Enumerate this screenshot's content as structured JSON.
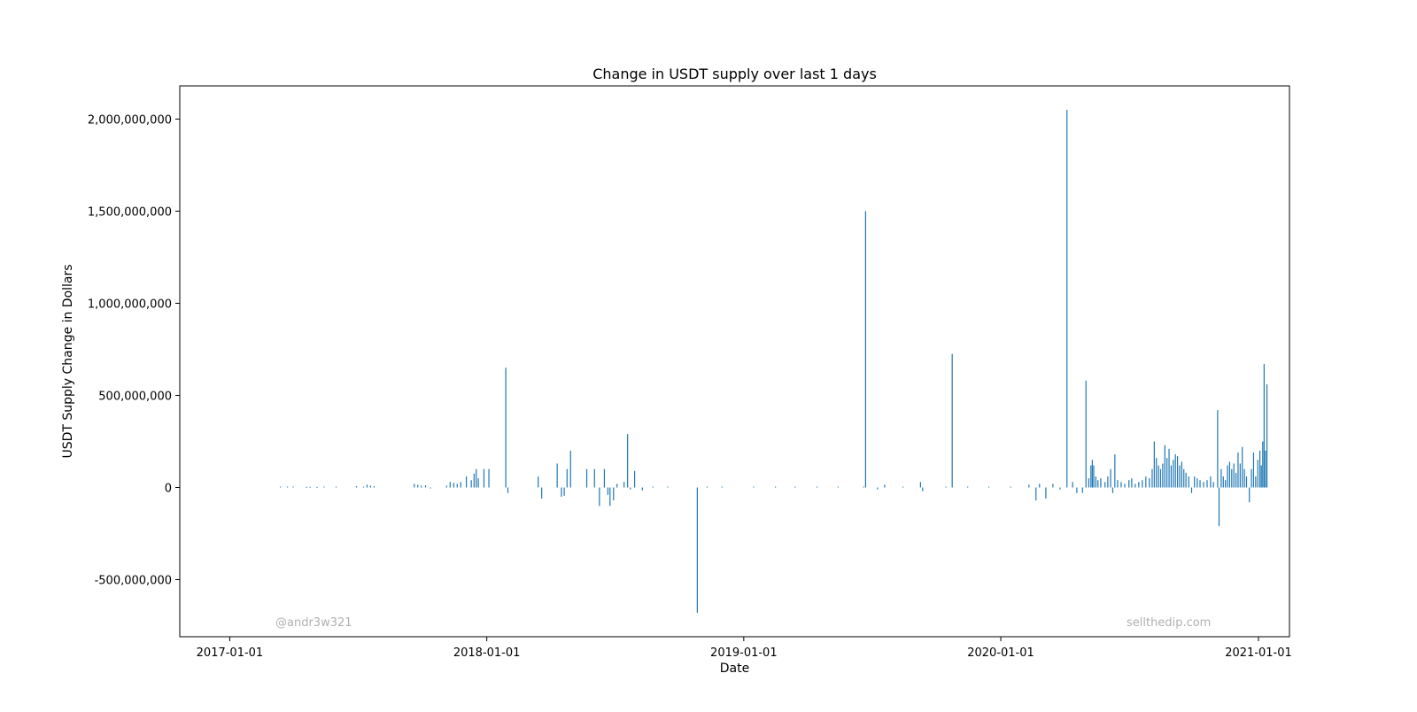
{
  "chart_data": {
    "type": "bar",
    "title": "Change in USDT supply over last 1 days",
    "xlabel": "Date",
    "ylabel": "USDT Supply Change in Dollars",
    "x_axis": "date",
    "xlim": [
      "2016-10-22",
      "2021-02-14"
    ],
    "ylim": [
      -810000000,
      2180000000
    ],
    "x_ticks": [
      "2017-01-01",
      "2018-01-01",
      "2019-01-01",
      "2020-01-01",
      "2021-01-01"
    ],
    "y_ticks": [
      -500000000,
      0,
      500000000,
      1000000000,
      1500000000,
      2000000000
    ],
    "y_tick_labels": [
      "-500,000,000",
      "0",
      "500,000,000",
      "1,000,000,000",
      "1,500,000,000",
      "2,000,000,000"
    ],
    "grid": false,
    "legend": "none",
    "bar_color": "#1f77b4",
    "watermarks": [
      "@andr3w321",
      "sellthedip.com"
    ],
    "series": [
      {
        "values": [
          {
            "x": "2017-03-14",
            "y": 5000000
          },
          {
            "x": "2017-03-24",
            "y": 5000000
          },
          {
            "x": "2017-04-01",
            "y": 5000000
          },
          {
            "x": "2017-04-20",
            "y": 3000000
          },
          {
            "x": "2017-04-25",
            "y": 4000000
          },
          {
            "x": "2017-05-05",
            "y": 3000000
          },
          {
            "x": "2017-05-15",
            "y": 5000000
          },
          {
            "x": "2017-06-01",
            "y": 5000000
          },
          {
            "x": "2017-06-30",
            "y": 7000000
          },
          {
            "x": "2017-07-10",
            "y": 5000000
          },
          {
            "x": "2017-07-15",
            "y": 15000000
          },
          {
            "x": "2017-07-20",
            "y": 10000000
          },
          {
            "x": "2017-07-25",
            "y": 7000000
          },
          {
            "x": "2017-09-20",
            "y": 20000000
          },
          {
            "x": "2017-09-25",
            "y": 15000000
          },
          {
            "x": "2017-09-30",
            "y": 10000000
          },
          {
            "x": "2017-10-06",
            "y": 12000000
          },
          {
            "x": "2017-10-13",
            "y": -5000000
          },
          {
            "x": "2017-11-05",
            "y": 10000000
          },
          {
            "x": "2017-11-10",
            "y": 30000000
          },
          {
            "x": "2017-11-15",
            "y": 25000000
          },
          {
            "x": "2017-11-20",
            "y": 20000000
          },
          {
            "x": "2017-11-25",
            "y": 30000000
          },
          {
            "x": "2017-12-03",
            "y": 60000000
          },
          {
            "x": "2017-12-10",
            "y": 40000000
          },
          {
            "x": "2017-12-14",
            "y": 75000000
          },
          {
            "x": "2017-12-17",
            "y": 100000000
          },
          {
            "x": "2017-12-20",
            "y": 50000000
          },
          {
            "x": "2017-12-28",
            "y": 100000000
          },
          {
            "x": "2018-01-04",
            "y": 100000000
          },
          {
            "x": "2018-01-28",
            "y": 650000000
          },
          {
            "x": "2018-01-31",
            "y": -30000000
          },
          {
            "x": "2018-03-15",
            "y": 60000000
          },
          {
            "x": "2018-03-20",
            "y": -60000000
          },
          {
            "x": "2018-04-11",
            "y": 130000000
          },
          {
            "x": "2018-04-17",
            "y": -50000000
          },
          {
            "x": "2018-04-21",
            "y": -45000000
          },
          {
            "x": "2018-04-25",
            "y": 100000000
          },
          {
            "x": "2018-04-30",
            "y": 200000000
          },
          {
            "x": "2018-05-23",
            "y": 100000000
          },
          {
            "x": "2018-06-03",
            "y": 100000000
          },
          {
            "x": "2018-06-10",
            "y": -100000000
          },
          {
            "x": "2018-06-17",
            "y": 100000000
          },
          {
            "x": "2018-06-22",
            "y": -40000000
          },
          {
            "x": "2018-06-25",
            "y": -100000000
          },
          {
            "x": "2018-06-30",
            "y": -70000000
          },
          {
            "x": "2018-07-05",
            "y": 20000000
          },
          {
            "x": "2018-07-15",
            "y": 30000000
          },
          {
            "x": "2018-07-20",
            "y": 290000000
          },
          {
            "x": "2018-07-24",
            "y": -10000000
          },
          {
            "x": "2018-07-30",
            "y": 90000000
          },
          {
            "x": "2018-08-10",
            "y": -15000000
          },
          {
            "x": "2018-08-25",
            "y": 5000000
          },
          {
            "x": "2018-09-15",
            "y": 5000000
          },
          {
            "x": "2018-10-27",
            "y": -680000000
          },
          {
            "x": "2018-11-10",
            "y": 5000000
          },
          {
            "x": "2018-12-01",
            "y": 5000000
          },
          {
            "x": "2019-01-15",
            "y": 5000000
          },
          {
            "x": "2019-02-15",
            "y": 5000000
          },
          {
            "x": "2019-03-15",
            "y": 5000000
          },
          {
            "x": "2019-04-15",
            "y": 5000000
          },
          {
            "x": "2019-05-15",
            "y": 5000000
          },
          {
            "x": "2019-06-20",
            "y": 5000000
          },
          {
            "x": "2019-06-23",
            "y": 1500000000
          },
          {
            "x": "2019-07-10",
            "y": -10000000
          },
          {
            "x": "2019-07-20",
            "y": 15000000
          },
          {
            "x": "2019-08-15",
            "y": 5000000
          },
          {
            "x": "2019-09-09",
            "y": 30000000
          },
          {
            "x": "2019-09-12",
            "y": -20000000
          },
          {
            "x": "2019-10-15",
            "y": 5000000
          },
          {
            "x": "2019-10-24",
            "y": 725000000
          },
          {
            "x": "2019-11-15",
            "y": 5000000
          },
          {
            "x": "2019-12-15",
            "y": 5000000
          },
          {
            "x": "2020-01-15",
            "y": 5000000
          },
          {
            "x": "2020-02-10",
            "y": 15000000
          },
          {
            "x": "2020-02-20",
            "y": -70000000
          },
          {
            "x": "2020-02-25",
            "y": 20000000
          },
          {
            "x": "2020-03-05",
            "y": -60000000
          },
          {
            "x": "2020-03-15",
            "y": 20000000
          },
          {
            "x": "2020-03-25",
            "y": -10000000
          },
          {
            "x": "2020-04-04",
            "y": 2050000000
          },
          {
            "x": "2020-04-12",
            "y": 30000000
          },
          {
            "x": "2020-04-18",
            "y": -30000000
          },
          {
            "x": "2020-04-26",
            "y": -30000000
          },
          {
            "x": "2020-05-01",
            "y": 580000000
          },
          {
            "x": "2020-05-05",
            "y": 50000000
          },
          {
            "x": "2020-05-08",
            "y": 120000000
          },
          {
            "x": "2020-05-10",
            "y": 150000000
          },
          {
            "x": "2020-05-12",
            "y": 120000000
          },
          {
            "x": "2020-05-15",
            "y": 60000000
          },
          {
            "x": "2020-05-18",
            "y": 40000000
          },
          {
            "x": "2020-05-22",
            "y": 50000000
          },
          {
            "x": "2020-05-28",
            "y": 30000000
          },
          {
            "x": "2020-06-01",
            "y": 60000000
          },
          {
            "x": "2020-06-05",
            "y": 100000000
          },
          {
            "x": "2020-06-08",
            "y": -30000000
          },
          {
            "x": "2020-06-11",
            "y": 180000000
          },
          {
            "x": "2020-06-15",
            "y": 40000000
          },
          {
            "x": "2020-06-20",
            "y": 30000000
          },
          {
            "x": "2020-06-25",
            "y": 20000000
          },
          {
            "x": "2020-07-01",
            "y": 40000000
          },
          {
            "x": "2020-07-05",
            "y": 50000000
          },
          {
            "x": "2020-07-10",
            "y": 20000000
          },
          {
            "x": "2020-07-15",
            "y": 30000000
          },
          {
            "x": "2020-07-20",
            "y": 40000000
          },
          {
            "x": "2020-07-25",
            "y": 60000000
          },
          {
            "x": "2020-07-30",
            "y": 50000000
          },
          {
            "x": "2020-08-03",
            "y": 100000000
          },
          {
            "x": "2020-08-06",
            "y": 250000000
          },
          {
            "x": "2020-08-09",
            "y": 160000000
          },
          {
            "x": "2020-08-12",
            "y": 120000000
          },
          {
            "x": "2020-08-15",
            "y": 100000000
          },
          {
            "x": "2020-08-18",
            "y": 130000000
          },
          {
            "x": "2020-08-21",
            "y": 230000000
          },
          {
            "x": "2020-08-24",
            "y": 160000000
          },
          {
            "x": "2020-08-27",
            "y": 210000000
          },
          {
            "x": "2020-08-30",
            "y": 120000000
          },
          {
            "x": "2020-09-02",
            "y": 150000000
          },
          {
            "x": "2020-09-05",
            "y": 180000000
          },
          {
            "x": "2020-09-08",
            "y": 170000000
          },
          {
            "x": "2020-09-11",
            "y": 120000000
          },
          {
            "x": "2020-09-14",
            "y": 140000000
          },
          {
            "x": "2020-09-17",
            "y": 100000000
          },
          {
            "x": "2020-09-20",
            "y": 80000000
          },
          {
            "x": "2020-09-24",
            "y": 60000000
          },
          {
            "x": "2020-09-28",
            "y": -30000000
          },
          {
            "x": "2020-10-02",
            "y": 60000000
          },
          {
            "x": "2020-10-06",
            "y": 50000000
          },
          {
            "x": "2020-10-10",
            "y": 40000000
          },
          {
            "x": "2020-10-15",
            "y": 30000000
          },
          {
            "x": "2020-10-20",
            "y": 40000000
          },
          {
            "x": "2020-10-25",
            "y": 60000000
          },
          {
            "x": "2020-10-29",
            "y": 30000000
          },
          {
            "x": "2020-11-04",
            "y": 420000000
          },
          {
            "x": "2020-11-06",
            "y": -210000000
          },
          {
            "x": "2020-11-09",
            "y": 100000000
          },
          {
            "x": "2020-11-12",
            "y": 60000000
          },
          {
            "x": "2020-11-15",
            "y": 40000000
          },
          {
            "x": "2020-11-18",
            "y": 120000000
          },
          {
            "x": "2020-11-21",
            "y": 140000000
          },
          {
            "x": "2020-11-24",
            "y": 100000000
          },
          {
            "x": "2020-11-27",
            "y": 130000000
          },
          {
            "x": "2020-11-30",
            "y": 80000000
          },
          {
            "x": "2020-12-03",
            "y": 190000000
          },
          {
            "x": "2020-12-06",
            "y": 130000000
          },
          {
            "x": "2020-12-09",
            "y": 220000000
          },
          {
            "x": "2020-12-12",
            "y": 100000000
          },
          {
            "x": "2020-12-15",
            "y": 60000000
          },
          {
            "x": "2020-12-19",
            "y": -80000000
          },
          {
            "x": "2020-12-22",
            "y": 100000000
          },
          {
            "x": "2020-12-25",
            "y": 190000000
          },
          {
            "x": "2020-12-28",
            "y": 60000000
          },
          {
            "x": "2020-12-31",
            "y": 150000000
          },
          {
            "x": "2021-01-03",
            "y": 200000000
          },
          {
            "x": "2021-01-05",
            "y": 120000000
          },
          {
            "x": "2021-01-07",
            "y": 250000000
          },
          {
            "x": "2021-01-09",
            "y": 670000000
          },
          {
            "x": "2021-01-11",
            "y": 200000000
          },
          {
            "x": "2021-01-13",
            "y": 560000000
          }
        ]
      }
    ]
  }
}
